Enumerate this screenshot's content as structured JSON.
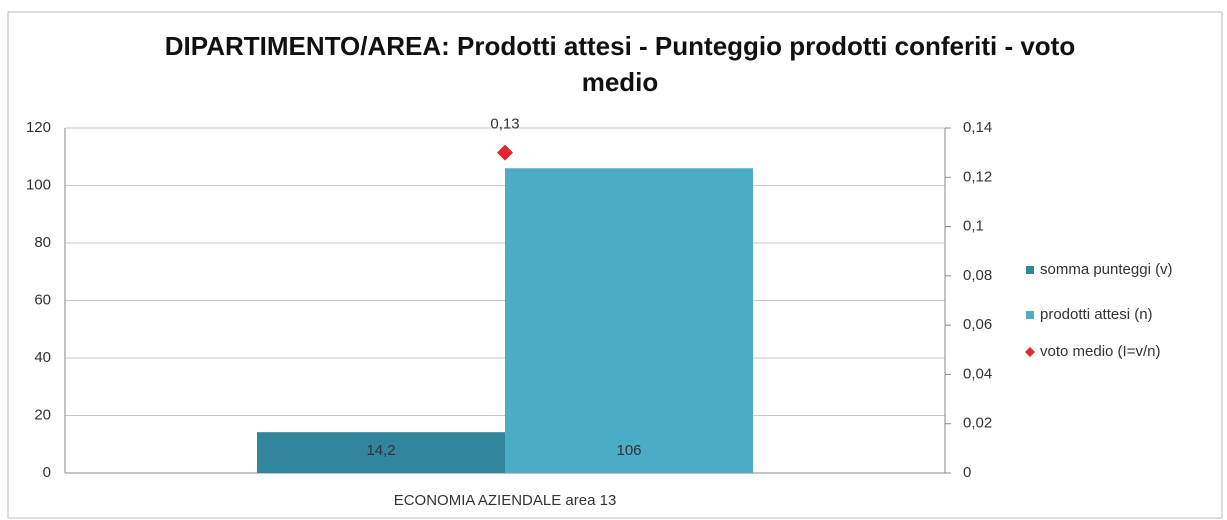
{
  "chart_data": {
    "type": "bar",
    "title": "DIPARTIMENTO/AREA: Prodotti attesi - Punteggio prodotti conferiti - voto medio",
    "categories": [
      "ECONOMIA AZIENDALE area 13"
    ],
    "series": [
      {
        "name": "somma punteggi (v)",
        "color": "#31859c",
        "values": [
          14.2
        ],
        "value_labels": [
          "14,2"
        ]
      },
      {
        "name": "prodotti attesi (n)",
        "color": "#4bacc6",
        "values": [
          106
        ]
      },
      {
        "name": "voto medio (I=v/n)",
        "color": "#e3262d",
        "values": [
          0.13
        ],
        "value_labels": [
          "0,13"
        ],
        "axis": "y2",
        "marker": "diamond"
      }
    ],
    "ylim": [
      0,
      120
    ],
    "yticks": [
      0,
      20,
      40,
      60,
      80,
      100,
      120
    ],
    "y2lim": [
      0,
      0.14
    ],
    "y2ticks": [
      0,
      {
        "value": 0.02,
        "label": "0,02"
      },
      {
        "value": 0.04,
        "label": "0,04"
      },
      {
        "value": 0.06,
        "label": "0,06"
      },
      {
        "value": 0.08,
        "label": "0,08"
      },
      {
        "value": 0.1,
        "label": "0,1"
      },
      {
        "value": 0.12,
        "label": "0,12"
      },
      {
        "value": 0.14,
        "label": "0,14"
      }
    ],
    "grid": true,
    "legend": "right"
  }
}
